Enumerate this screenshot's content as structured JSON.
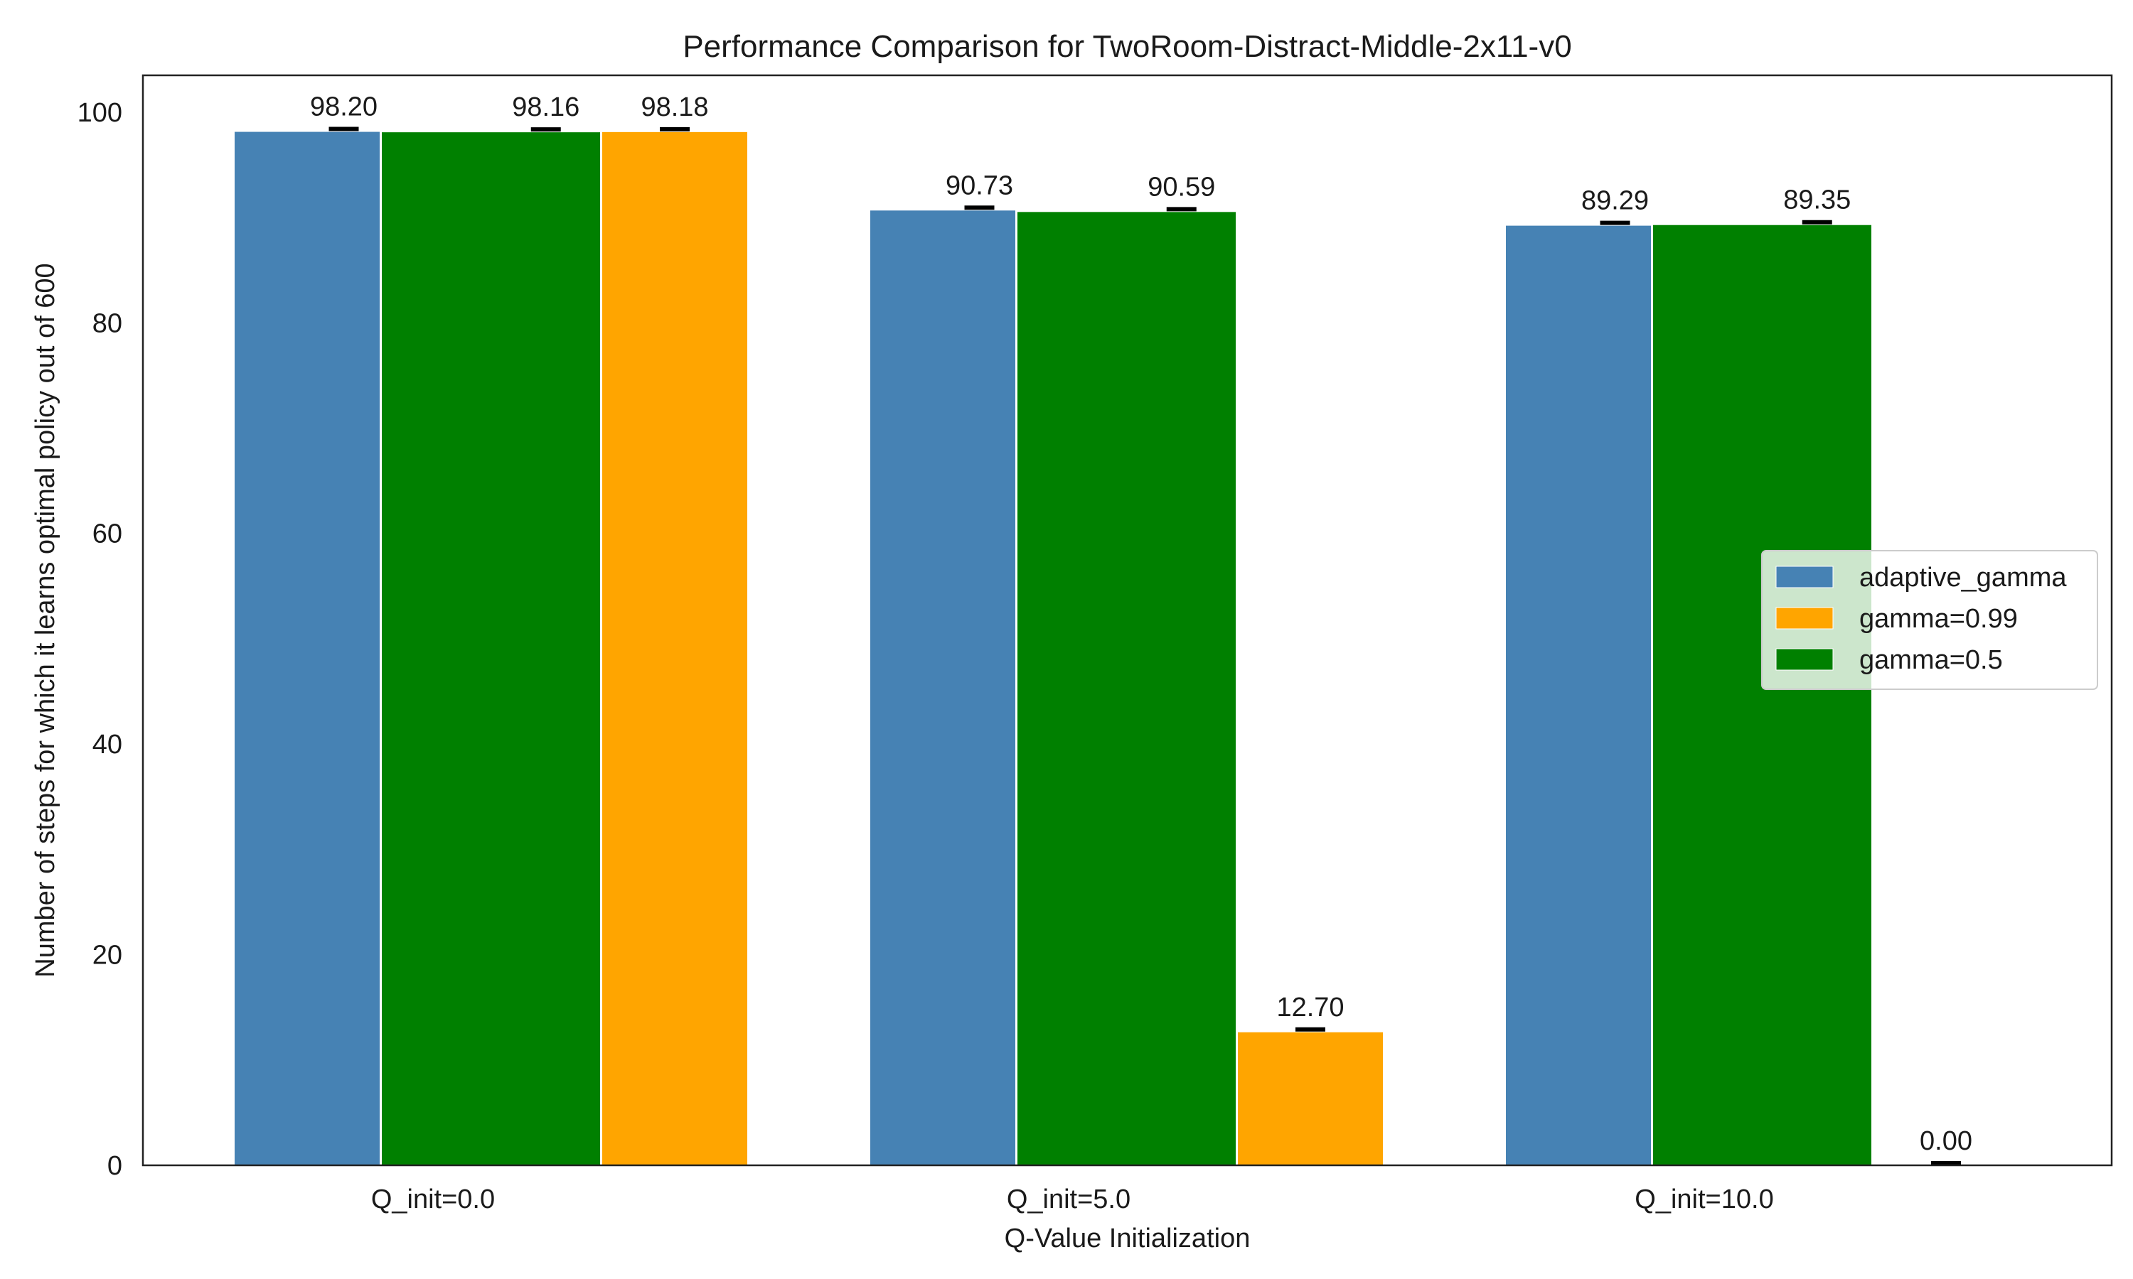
{
  "chart_data": {
    "type": "bar",
    "title": "Performance Comparison for TwoRoom-Distract-Middle-2x11-v0",
    "xlabel": "Q-Value Initialization",
    "ylabel": "Number of steps for which it learns optimal policy out of 600",
    "categories": [
      "Q_init=0.0",
      "Q_init=5.0",
      "Q_init=10.0"
    ],
    "ylim": [
      0,
      103.5
    ],
    "yticks": [
      0,
      20,
      40,
      60,
      80,
      100
    ],
    "grid": false,
    "legend_position": "center-right",
    "series": [
      {
        "name": "adaptive_gamma",
        "color": "#4682b4",
        "values": [
          98.2,
          90.73,
          89.29
        ],
        "labels": [
          "98.20",
          "90.73",
          "89.29"
        ]
      },
      {
        "name": "gamma=0.99",
        "color": "#ffa500",
        "values": [
          98.18,
          12.7,
          0.0
        ],
        "labels": [
          "98.18",
          "12.70",
          "0.00"
        ]
      },
      {
        "name": "gamma=0.5",
        "color": "#008000",
        "values": [
          98.16,
          90.59,
          89.35
        ],
        "labels": [
          "98.16",
          "90.59",
          "89.35"
        ]
      }
    ]
  }
}
